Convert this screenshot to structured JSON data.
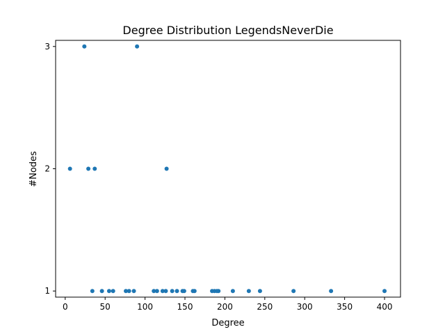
{
  "chart_data": {
    "type": "scatter",
    "title": "Degree Distribution LegendsNeverDie",
    "xlabel": "Degree",
    "ylabel": "#Nodes",
    "xlim": [
      -12,
      420
    ],
    "ylim": [
      0.95,
      3.05
    ],
    "xticks": [
      0,
      50,
      100,
      150,
      200,
      250,
      300,
      350,
      400
    ],
    "yticks": [
      1,
      2,
      3
    ],
    "grid": false,
    "marker_color": "#1f77b4",
    "series": [
      {
        "x": [
          6,
          24,
          29,
          34,
          37,
          46,
          55,
          60,
          76,
          80,
          86,
          90,
          111,
          115,
          122,
          126,
          127,
          134,
          140,
          147,
          149,
          160,
          162,
          184,
          187,
          190,
          192,
          210,
          230,
          244,
          286,
          333,
          400
        ],
        "y": [
          2,
          3,
          2,
          1,
          2,
          1,
          1,
          1,
          1,
          1,
          1,
          3,
          1,
          1,
          1,
          1,
          2,
          1,
          1,
          1,
          1,
          1,
          1,
          1,
          1,
          1,
          1,
          1,
          1,
          1,
          1,
          1,
          1
        ]
      }
    ]
  }
}
